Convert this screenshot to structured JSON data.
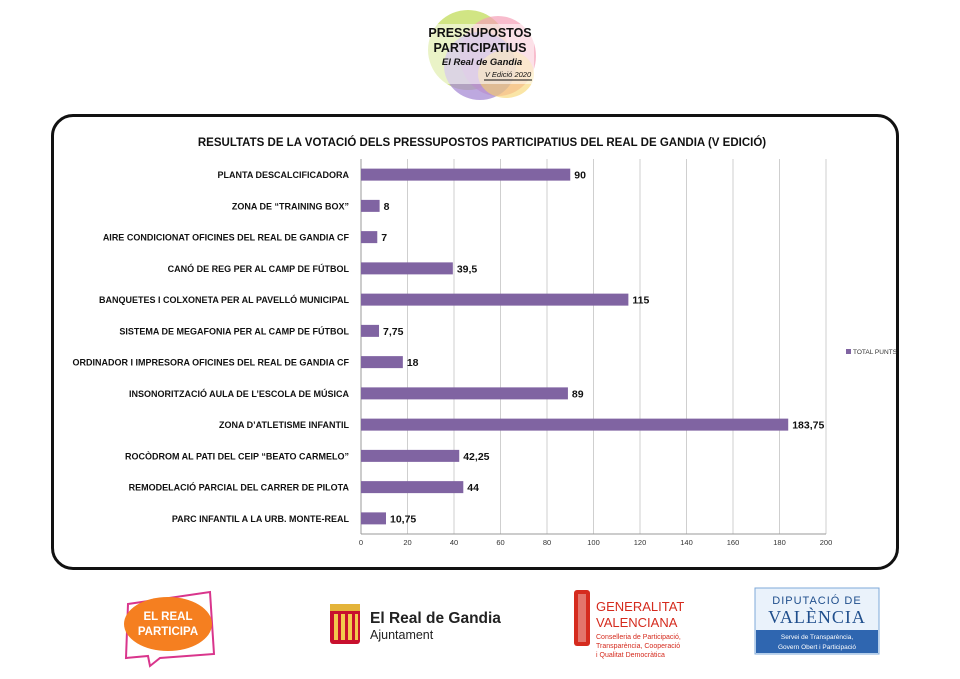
{
  "header": {
    "line1": "PRESSUPOSTOS",
    "line2": "PARTICIPATIUS",
    "line3": "El Real de Gandia",
    "line4": "V Edició 2020"
  },
  "chart_data": {
    "type": "bar",
    "orientation": "horizontal",
    "title": "RESULTATS DE LA VOTACIÓ DELS PRESSUPOSTOS PARTICIPATIUS DEL REAL DE GANDIA (V EDICIÓ)",
    "categories": [
      "PLANTA DESCALCIFICADORA",
      "ZONA DE “TRAINING BOX”",
      "AIRE CONDICIONAT OFICINES DEL REAL DE GANDIA CF",
      "CANÓ DE REG PER AL CAMP DE FÚTBOL",
      "BANQUETES I COLXONETA PER AL PAVELLÓ MUNICIPAL",
      "SISTEMA DE MEGAFONIA  PER AL CAMP DE FÚTBOL",
      "ORDINADOR I IMPRESORA OFICINES DEL REAL DE GANDIA CF",
      "INSONORITZACIÓ AULA DE L’ESCOLA DE MÚSICA",
      "ZONA D’ATLETISME INFANTIL",
      "ROCÒDROM AL PATI DEL CEIP “BEATO CARMELO”",
      "REMODELACIÓ PARCIAL DEL CARRER DE PILOTA",
      "PARC INFANTIL A LA URB. MONTE-REAL"
    ],
    "series": [
      {
        "name": "TOTAL PUNTS",
        "values": [
          90,
          8,
          7,
          39.5,
          115,
          7.75,
          18,
          89,
          183.75,
          42.25,
          44,
          10.75
        ]
      }
    ],
    "value_labels": [
      "90",
      "8",
      "7",
      "39,5",
      "115",
      "7,75",
      "18",
      "89",
      "183,75",
      "42,25",
      "44",
      "10,75"
    ],
    "xlim": [
      0,
      200
    ],
    "xticks": [
      0,
      20,
      40,
      60,
      80,
      100,
      120,
      140,
      160,
      180,
      200
    ],
    "grid": "vertical",
    "legend": "right",
    "bar_color": "#8064a2"
  },
  "footer": {
    "participa_line1": "EL REAL",
    "participa_line2": "PARTICIPA",
    "ajuntament_name": "El Real de Gandia",
    "ajuntament_sub": "Ajuntament",
    "gva_line1": "GENERALITAT",
    "gva_line2": "VALENCIANA",
    "gva_sub1": "Conselleria de Participació,",
    "gva_sub2": "Transparència, Cooperació",
    "gva_sub3": "i Qualitat Democràtica",
    "dip_line1": "DIPUTACIÓ DE",
    "dip_line2": "VALÈNCIA",
    "dip_sub1": "Servei de Transparència,",
    "dip_sub2": "Govern Obert i Participació"
  }
}
